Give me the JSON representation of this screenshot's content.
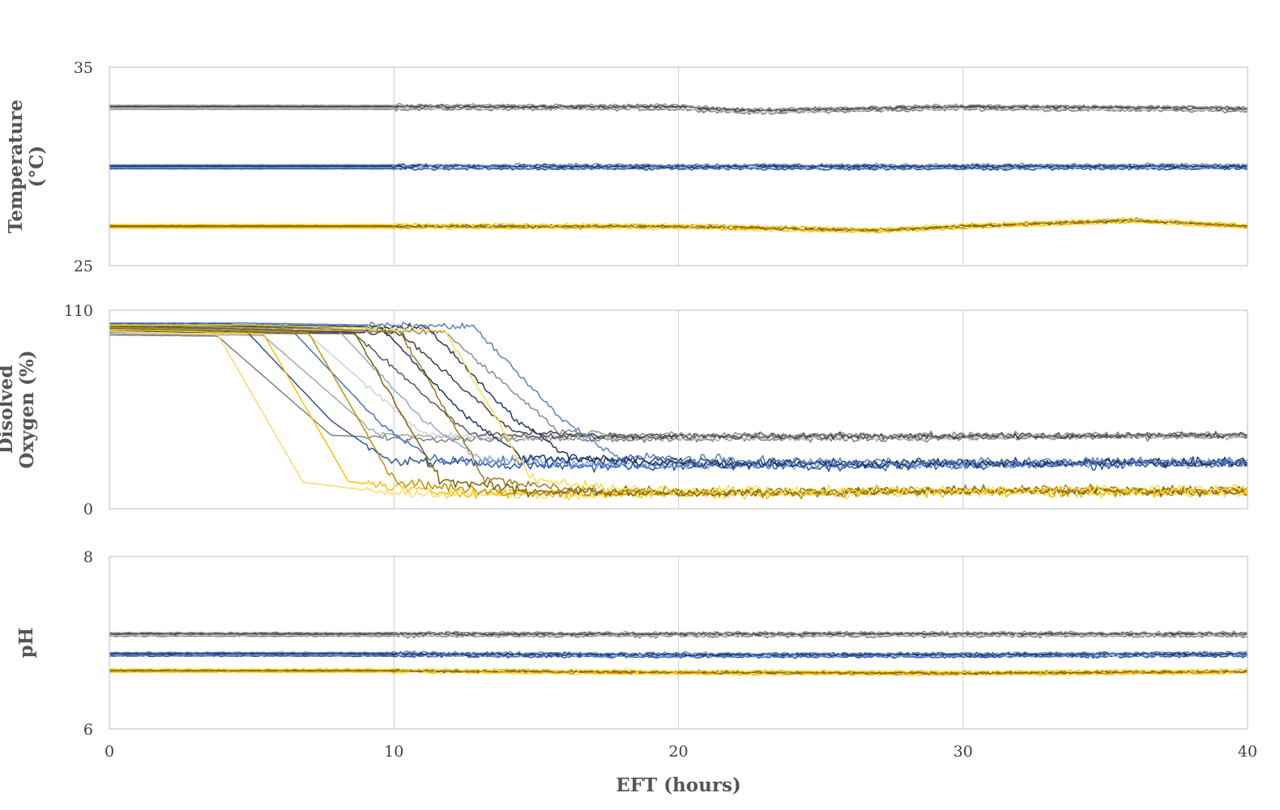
{
  "chart_data": [
    {
      "type": "line",
      "panel": "top",
      "ylabel": "Temperature",
      "ylabel_unit": "(°C)",
      "ylim": [
        25,
        35
      ],
      "yticks": [
        "35",
        "25"
      ],
      "xlim": [
        0,
        40
      ],
      "grid": "vertical at x = 10, 20, 30",
      "series": [
        {
          "group": "gray",
          "values_x": [
            0,
            9.5,
            10,
            20,
            22.5,
            30,
            40
          ],
          "values_y": [
            33.0,
            33.0,
            33.0,
            33.0,
            32.8,
            33.0,
            32.9
          ]
        },
        {
          "group": "blue",
          "values_x": [
            0,
            10,
            20,
            30,
            40
          ],
          "values_y": [
            30.0,
            30.0,
            30.0,
            30.0,
            30.0
          ]
        },
        {
          "group": "yellow",
          "values_x": [
            0,
            10,
            20,
            27,
            30,
            36,
            40
          ],
          "values_y": [
            27.0,
            27.0,
            27.0,
            26.8,
            27.0,
            27.3,
            27.0
          ]
        }
      ]
    },
    {
      "type": "line",
      "panel": "middle",
      "ylabel": "Disolved",
      "ylabel_line2": "Oxygen (%)",
      "ylim": [
        0,
        110
      ],
      "yticks": [
        "110",
        "0"
      ],
      "xlim": [
        0,
        40
      ],
      "grid": "vertical at x = 10, 20, 30",
      "series": [
        {
          "group": "gray",
          "values_x": [
            0,
            7,
            11,
            14,
            19,
            20,
            30,
            40
          ],
          "values_y": [
            98,
            97,
            42,
            40,
            40,
            40,
            40,
            41
          ]
        },
        {
          "group": "blue",
          "values_x": [
            0,
            8,
            11,
            13,
            17,
            20,
            30,
            40
          ],
          "values_y": [
            102,
            100,
            50,
            28,
            26,
            25,
            25,
            26
          ]
        },
        {
          "group": "yellow",
          "values_x": [
            0,
            7,
            10,
            13,
            20,
            30,
            40
          ],
          "values_y": [
            101,
            98,
            16,
            10,
            9,
            10,
            10
          ]
        }
      ]
    },
    {
      "type": "line",
      "panel": "bottom",
      "ylabel": "pH",
      "ylim": [
        6,
        8
      ],
      "yticks": [
        "8",
        "6"
      ],
      "xlim": [
        0,
        40
      ],
      "xticks": [
        "0",
        "10",
        "20",
        "30",
        "40"
      ],
      "xlabel": "EFT (hours)",
      "grid": "vertical at x = 10, 20, 30",
      "series": [
        {
          "group": "gray",
          "values_x": [
            0,
            10,
            20,
            30,
            40
          ],
          "values_y": [
            7.1,
            7.1,
            7.1,
            7.1,
            7.1
          ]
        },
        {
          "group": "blue",
          "values_x": [
            0,
            10,
            20,
            30,
            40
          ],
          "values_y": [
            6.87,
            6.87,
            6.86,
            6.86,
            6.87
          ]
        },
        {
          "group": "yellow",
          "values_x": [
            0,
            10,
            20,
            30,
            40
          ],
          "values_y": [
            6.68,
            6.68,
            6.66,
            6.65,
            6.67
          ]
        }
      ]
    }
  ],
  "palette": {
    "gray": [
      "#7f7f7f",
      "#a6a6a6",
      "#d0d0d0",
      "#595959",
      "#404040",
      "#8c8c8c"
    ],
    "blue": [
      "#2f5597",
      "#4472c4",
      "#8faadc",
      "#1f3864",
      "#203864",
      "#5b7fc7"
    ],
    "yellow": [
      "#ffd966",
      "#ffc000",
      "#bf9000",
      "#7f6000",
      "#9c7b1a",
      "#f5e04a"
    ]
  }
}
